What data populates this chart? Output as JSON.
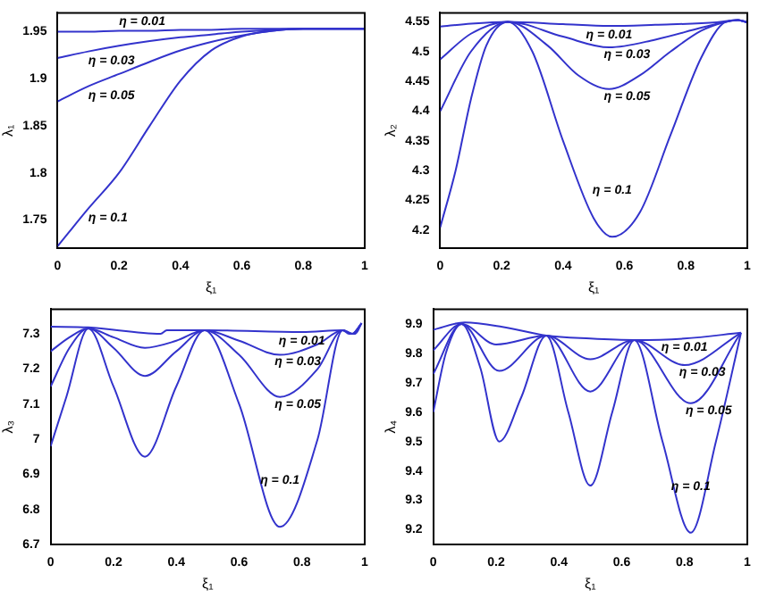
{
  "chart_data": [
    {
      "type": "line",
      "xlabel": "ξ₁",
      "ylabel": "λ₁",
      "xlim": [
        0,
        1
      ],
      "xticks": [
        0,
        0.2,
        0.4,
        0.6,
        0.8,
        1
      ],
      "ylim": [
        1.72,
        1.97
      ],
      "yticks": [
        1.75,
        1.8,
        1.85,
        1.9,
        1.95
      ],
      "series": [
        {
          "name": "η = 0.01",
          "color": "#3333cc",
          "x": [
            0,
            0.1,
            0.2,
            0.3,
            0.4,
            0.5,
            0.6,
            0.7,
            0.8,
            0.9,
            1
          ],
          "values": [
            1.95,
            1.95,
            1.951,
            1.951,
            1.952,
            1.952,
            1.953,
            1.953,
            1.953,
            1.953,
            1.953
          ]
        },
        {
          "name": "η = 0.03",
          "color": "#3333cc",
          "x": [
            0,
            0.1,
            0.2,
            0.3,
            0.4,
            0.5,
            0.6,
            0.7,
            0.8,
            0.9,
            1
          ],
          "values": [
            1.922,
            1.929,
            1.935,
            1.94,
            1.944,
            1.947,
            1.95,
            1.952,
            1.953,
            1.953,
            1.953
          ]
        },
        {
          "name": "η = 0.05",
          "color": "#3333cc",
          "x": [
            0,
            0.1,
            0.2,
            0.3,
            0.4,
            0.5,
            0.6,
            0.7,
            0.8,
            0.9,
            1
          ],
          "values": [
            1.876,
            1.892,
            1.905,
            1.918,
            1.93,
            1.939,
            1.946,
            1.951,
            1.953,
            1.953,
            1.953
          ]
        },
        {
          "name": "η = 0.1",
          "color": "#3333cc",
          "x": [
            0,
            0.1,
            0.2,
            0.3,
            0.4,
            0.5,
            0.6,
            0.7,
            0.8,
            0.9,
            1
          ],
          "values": [
            1.722,
            1.762,
            1.8,
            1.85,
            1.898,
            1.93,
            1.945,
            1.951,
            1.953,
            1.953,
            1.953
          ]
        }
      ]
    },
    {
      "type": "line",
      "xlabel": "ξ₁",
      "ylabel": "λ₂",
      "xlim": [
        0,
        1
      ],
      "xticks": [
        0,
        0.2,
        0.4,
        0.6,
        0.8,
        1
      ],
      "ylim": [
        4.17,
        4.565
      ],
      "yticks": [
        4.2,
        4.25,
        4.3,
        4.35,
        4.4,
        4.45,
        4.5,
        4.55
      ],
      "series": [
        {
          "name": "η = 0.01",
          "color": "#3333cc",
          "x": [
            0,
            0.1,
            0.22,
            0.4,
            0.55,
            0.7,
            0.9,
            0.97,
            1
          ],
          "values": [
            4.542,
            4.547,
            4.55,
            4.546,
            4.543,
            4.545,
            4.549,
            4.553,
            4.549
          ]
        },
        {
          "name": "η = 0.03",
          "color": "#3333cc",
          "x": [
            0,
            0.1,
            0.22,
            0.4,
            0.55,
            0.7,
            0.85,
            0.93,
            0.97,
            1
          ],
          "values": [
            4.487,
            4.53,
            4.55,
            4.525,
            4.507,
            4.52,
            4.54,
            4.55,
            4.553,
            4.549
          ]
        },
        {
          "name": "η = 0.05",
          "color": "#3333cc",
          "x": [
            0,
            0.1,
            0.22,
            0.35,
            0.45,
            0.55,
            0.65,
            0.75,
            0.85,
            0.93,
            0.97,
            1
          ],
          "values": [
            4.4,
            4.5,
            4.55,
            4.51,
            4.46,
            4.437,
            4.46,
            4.5,
            4.535,
            4.55,
            4.553,
            4.549
          ]
        },
        {
          "name": "η = 0.1",
          "color": "#3333cc",
          "x": [
            0,
            0.05,
            0.1,
            0.15,
            0.22,
            0.3,
            0.4,
            0.5,
            0.56,
            0.65,
            0.75,
            0.85,
            0.93,
            0.97,
            1
          ],
          "values": [
            4.205,
            4.3,
            4.42,
            4.51,
            4.55,
            4.5,
            4.35,
            4.22,
            4.189,
            4.23,
            4.36,
            4.49,
            4.55,
            4.553,
            4.549
          ]
        }
      ]
    },
    {
      "type": "line",
      "xlabel": "ξ₁",
      "ylabel": "λ₃",
      "xlim": [
        0,
        1
      ],
      "xticks": [
        0,
        0.2,
        0.4,
        0.6,
        0.8,
        1
      ],
      "ylim": [
        6.7,
        7.37
      ],
      "yticks": [
        6.7,
        6.8,
        6.9,
        7,
        7.1,
        7.2,
        7.3
      ],
      "series": [
        {
          "name": "η = 0.01",
          "color": "#3333cc",
          "x": [
            0,
            0.12,
            0.35,
            0.37,
            0.5,
            0.8,
            0.93,
            0.95,
            0.97,
            0.99
          ],
          "values": [
            7.32,
            7.318,
            7.3,
            7.31,
            7.31,
            7.305,
            7.31,
            7.3,
            7.3,
            7.33
          ]
        },
        {
          "name": "η = 0.03",
          "color": "#3333cc",
          "x": [
            0,
            0.06,
            0.12,
            0.2,
            0.3,
            0.4,
            0.49,
            0.6,
            0.73,
            0.85,
            0.93,
            0.96,
            0.99
          ],
          "values": [
            7.25,
            7.29,
            7.315,
            7.29,
            7.26,
            7.28,
            7.31,
            7.28,
            7.24,
            7.27,
            7.31,
            7.3,
            7.33
          ]
        },
        {
          "name": "η = 0.05",
          "color": "#3333cc",
          "x": [
            0,
            0.06,
            0.12,
            0.2,
            0.3,
            0.4,
            0.49,
            0.6,
            0.73,
            0.85,
            0.93,
            0.96,
            0.99
          ],
          "values": [
            7.15,
            7.26,
            7.315,
            7.26,
            7.18,
            7.25,
            7.31,
            7.24,
            7.12,
            7.2,
            7.31,
            7.3,
            7.33
          ]
        },
        {
          "name": "η = 0.1",
          "color": "#3333cc",
          "x": [
            0,
            0.05,
            0.12,
            0.2,
            0.3,
            0.4,
            0.49,
            0.6,
            0.73,
            0.85,
            0.93,
            0.96,
            0.99
          ],
          "values": [
            6.98,
            7.12,
            7.315,
            7.15,
            6.95,
            7.15,
            7.31,
            7.1,
            6.75,
            7.0,
            7.31,
            7.3,
            7.33
          ]
        }
      ]
    },
    {
      "type": "line",
      "xlabel": "ξ₁",
      "ylabel": "λ₄",
      "xlim": [
        0,
        1
      ],
      "xticks": [
        0,
        0.2,
        0.4,
        0.6,
        0.8,
        1
      ],
      "ylim": [
        9.15,
        9.95
      ],
      "yticks": [
        9.2,
        9.3,
        9.4,
        9.5,
        9.6,
        9.7,
        9.8,
        9.9
      ],
      "series": [
        {
          "name": "η = 0.01",
          "color": "#3333cc",
          "x": [
            0,
            0.1,
            0.22,
            0.36,
            0.5,
            0.64,
            0.8,
            0.98
          ],
          "values": [
            9.88,
            9.905,
            9.89,
            9.86,
            9.85,
            9.845,
            9.85,
            9.87
          ]
        },
        {
          "name": "η = 0.03",
          "color": "#3333cc",
          "x": [
            0,
            0.09,
            0.2,
            0.36,
            0.5,
            0.64,
            0.8,
            0.98
          ],
          "values": [
            9.81,
            9.9,
            9.83,
            9.86,
            9.78,
            9.845,
            9.76,
            9.87
          ]
        },
        {
          "name": "η = 0.05",
          "color": "#3333cc",
          "x": [
            0,
            0.09,
            0.21,
            0.36,
            0.5,
            0.64,
            0.82,
            0.98
          ],
          "values": [
            9.73,
            9.9,
            9.74,
            9.86,
            9.67,
            9.845,
            9.63,
            9.87
          ]
        },
        {
          "name": "η = 0.1",
          "color": "#3333cc",
          "x": [
            0,
            0.04,
            0.09,
            0.15,
            0.21,
            0.28,
            0.36,
            0.43,
            0.5,
            0.57,
            0.64,
            0.73,
            0.82,
            0.9,
            0.98
          ],
          "values": [
            9.6,
            9.8,
            9.9,
            9.75,
            9.5,
            9.65,
            9.86,
            9.6,
            9.35,
            9.6,
            9.845,
            9.5,
            9.19,
            9.5,
            9.87
          ]
        }
      ]
    }
  ]
}
